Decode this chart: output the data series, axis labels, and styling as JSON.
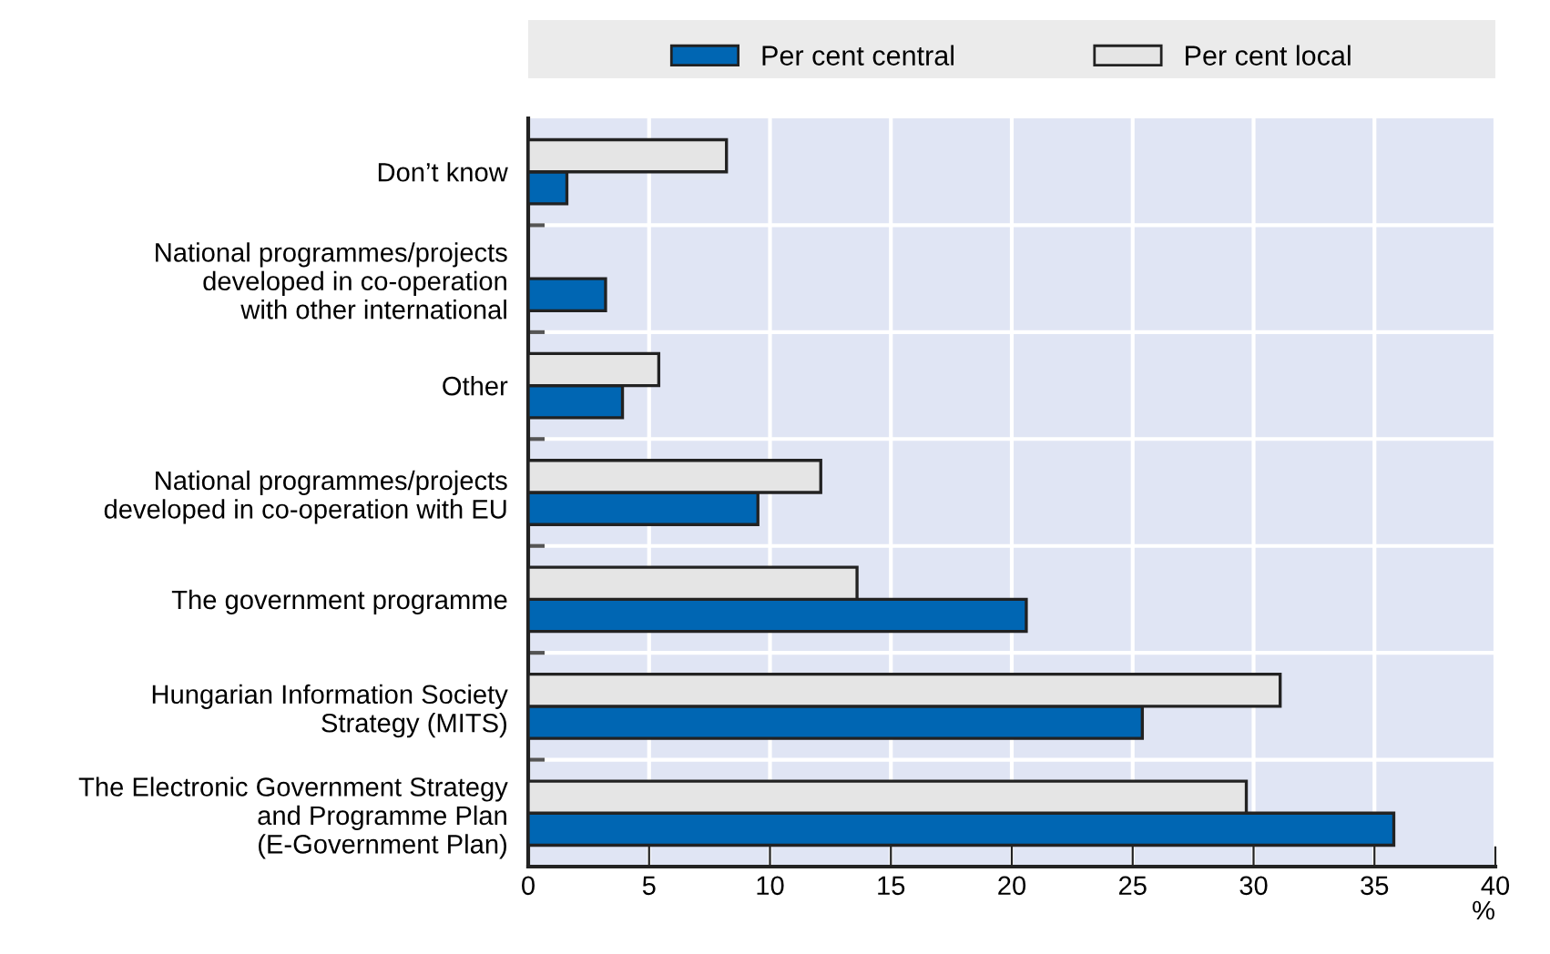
{
  "chart_data": {
    "type": "bar",
    "orientation": "horizontal",
    "categories": [
      "Don’t know",
      "National programmes/projects\ndeveloped in co-operation\nwith other international",
      "Other",
      "National programmes/projects\ndeveloped in co-operation with EU",
      "The government programme",
      "Hungarian Information Society\nStrategy (MITS)",
      "The Electronic Government Strategy\nand Programme Plan\n(E-Government Plan)"
    ],
    "series": [
      {
        "name": "Per cent central",
        "color": "#0066b3",
        "values": [
          1.6,
          3.2,
          3.9,
          9.5,
          20.6,
          25.4,
          35.8
        ]
      },
      {
        "name": "Per cent local",
        "color": "#e5e5e5",
        "values": [
          8.2,
          null,
          5.4,
          12.1,
          13.6,
          31.1,
          29.7
        ]
      }
    ],
    "xlabel": "%",
    "xlim": [
      0,
      40
    ],
    "xticks": [
      0,
      5,
      10,
      15,
      20,
      25,
      30,
      35,
      40
    ],
    "grid": true,
    "legend": "top"
  }
}
